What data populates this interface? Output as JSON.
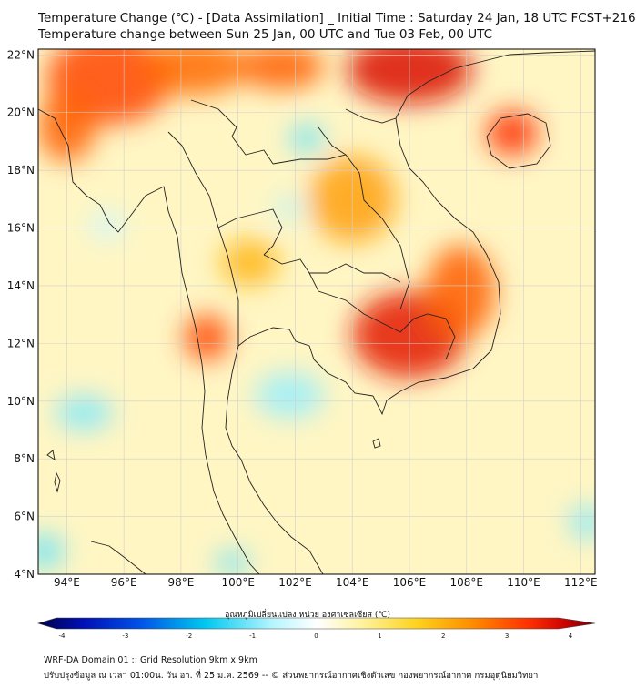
{
  "header": {
    "title_line1": "Temperature Change (℃) - [Data Assimilation] _ Initial Time : Saturday 24 Jan, 18 UTC FCST+216",
    "title_line2": "Temperature change between Sun 25 Jan, 00 UTC and Tue 03 Feb, 00 UTC"
  },
  "map": {
    "lon_range": [
      93,
      112.5
    ],
    "lat_range": [
      4,
      22.2
    ],
    "lon_ticks": [
      {
        "value": 94,
        "label": "94°E"
      },
      {
        "value": 96,
        "label": "96°E"
      },
      {
        "value": 98,
        "label": "98°E"
      },
      {
        "value": 100,
        "label": "100°E"
      },
      {
        "value": 102,
        "label": "102°E"
      },
      {
        "value": 104,
        "label": "104°E"
      },
      {
        "value": 106,
        "label": "106°E"
      },
      {
        "value": 108,
        "label": "108°E"
      },
      {
        "value": 110,
        "label": "110°E"
      },
      {
        "value": 112,
        "label": "112°E"
      }
    ],
    "lat_ticks": [
      {
        "value": 22,
        "label": "22°N"
      },
      {
        "value": 20,
        "label": "20°N"
      },
      {
        "value": 18,
        "label": "18°N"
      },
      {
        "value": 16,
        "label": "16°N"
      },
      {
        "value": 14,
        "label": "14°N"
      },
      {
        "value": 12,
        "label": "12°N"
      },
      {
        "value": 10,
        "label": "10°N"
      },
      {
        "value": 8,
        "label": "8°N"
      },
      {
        "value": 6,
        "label": "6°N"
      },
      {
        "value": 4,
        "label": "4°N"
      }
    ],
    "grid": true,
    "temperature_blobs": [
      {
        "lon": 95.5,
        "lat": 21.2,
        "change": 2.8,
        "rlon": 2.2,
        "rlat": 1.6
      },
      {
        "lon": 98.5,
        "lat": 21.6,
        "change": 2.5,
        "rlon": 1.8,
        "rlat": 1.0
      },
      {
        "lon": 101.5,
        "lat": 21.6,
        "change": 2.6,
        "rlon": 1.5,
        "rlat": 0.8
      },
      {
        "lon": 106.0,
        "lat": 21.5,
        "change": 3.4,
        "rlon": 2.2,
        "rlat": 1.2
      },
      {
        "lon": 109.6,
        "lat": 19.3,
        "change": 3.0,
        "rlon": 0.9,
        "rlat": 0.8
      },
      {
        "lon": 106.0,
        "lat": 12.3,
        "change": 3.3,
        "rlon": 2.0,
        "rlat": 1.5
      },
      {
        "lon": 107.8,
        "lat": 13.8,
        "change": 2.6,
        "rlon": 1.2,
        "rlat": 1.6
      },
      {
        "lon": 98.9,
        "lat": 12.2,
        "change": 2.8,
        "rlon": 0.8,
        "rlat": 0.8
      },
      {
        "lon": 100.4,
        "lat": 14.8,
        "change": 1.8,
        "rlon": 1.0,
        "rlat": 0.8
      },
      {
        "lon": 94.0,
        "lat": 19.5,
        "change": 2.6,
        "rlon": 1.0,
        "rlat": 1.2
      },
      {
        "lon": 104.0,
        "lat": 17.0,
        "change": 2.0,
        "rlon": 1.5,
        "rlat": 1.5
      },
      {
        "lon": 102.4,
        "lat": 19.1,
        "change": -0.6,
        "rlon": 0.6,
        "rlat": 0.5
      },
      {
        "lon": 101.8,
        "lat": 16.7,
        "change": -0.3,
        "rlon": 0.5,
        "rlat": 0.4
      },
      {
        "lon": 95.4,
        "lat": 16.1,
        "change": -0.2,
        "rlon": 0.6,
        "rlat": 0.5
      },
      {
        "lon": 94.6,
        "lat": 9.6,
        "change": -0.5,
        "rlon": 1.0,
        "rlat": 0.6
      },
      {
        "lon": 101.8,
        "lat": 10.2,
        "change": -0.4,
        "rlon": 1.2,
        "rlat": 0.8
      },
      {
        "lon": 93.2,
        "lat": 4.8,
        "change": -0.6,
        "rlon": 0.7,
        "rlat": 0.6
      },
      {
        "lon": 99.8,
        "lat": 4.4,
        "change": -0.6,
        "rlon": 0.6,
        "rlat": 0.4
      },
      {
        "lon": 112.2,
        "lat": 5.8,
        "change": -0.5,
        "rlon": 0.6,
        "rlat": 0.6
      }
    ]
  },
  "colorbar": {
    "title": "อุณหภูมิเปลี่ยนแปลง หน่วย องศาเซลเซียส (℃)",
    "min": -4,
    "max": 4,
    "ticks": [
      "-4",
      "-3",
      "-2",
      "-1",
      "0",
      "1",
      "2",
      "3",
      "4"
    ],
    "colors": {
      "cold_end": "#00004a",
      "cool": "#00c8f0",
      "neutral": "#ffffff",
      "warm": "#ffd21e",
      "hot": "#ff3000",
      "hot_end": "#6e0000"
    }
  },
  "footer": {
    "line1": "WRF-DA Domain 01 :: Grid Resolution 9km x 9km",
    "line2": "ปรับปรุงข้อมูล ณ เวลา 01:00น. วัน อา. ที่ 25 ม.ค. 2569 -- © ส่วนพยากรณ์อากาศเชิงตัวเลข กองพยากรณ์อากาศ กรมอุตุนิยมวิทยา"
  }
}
